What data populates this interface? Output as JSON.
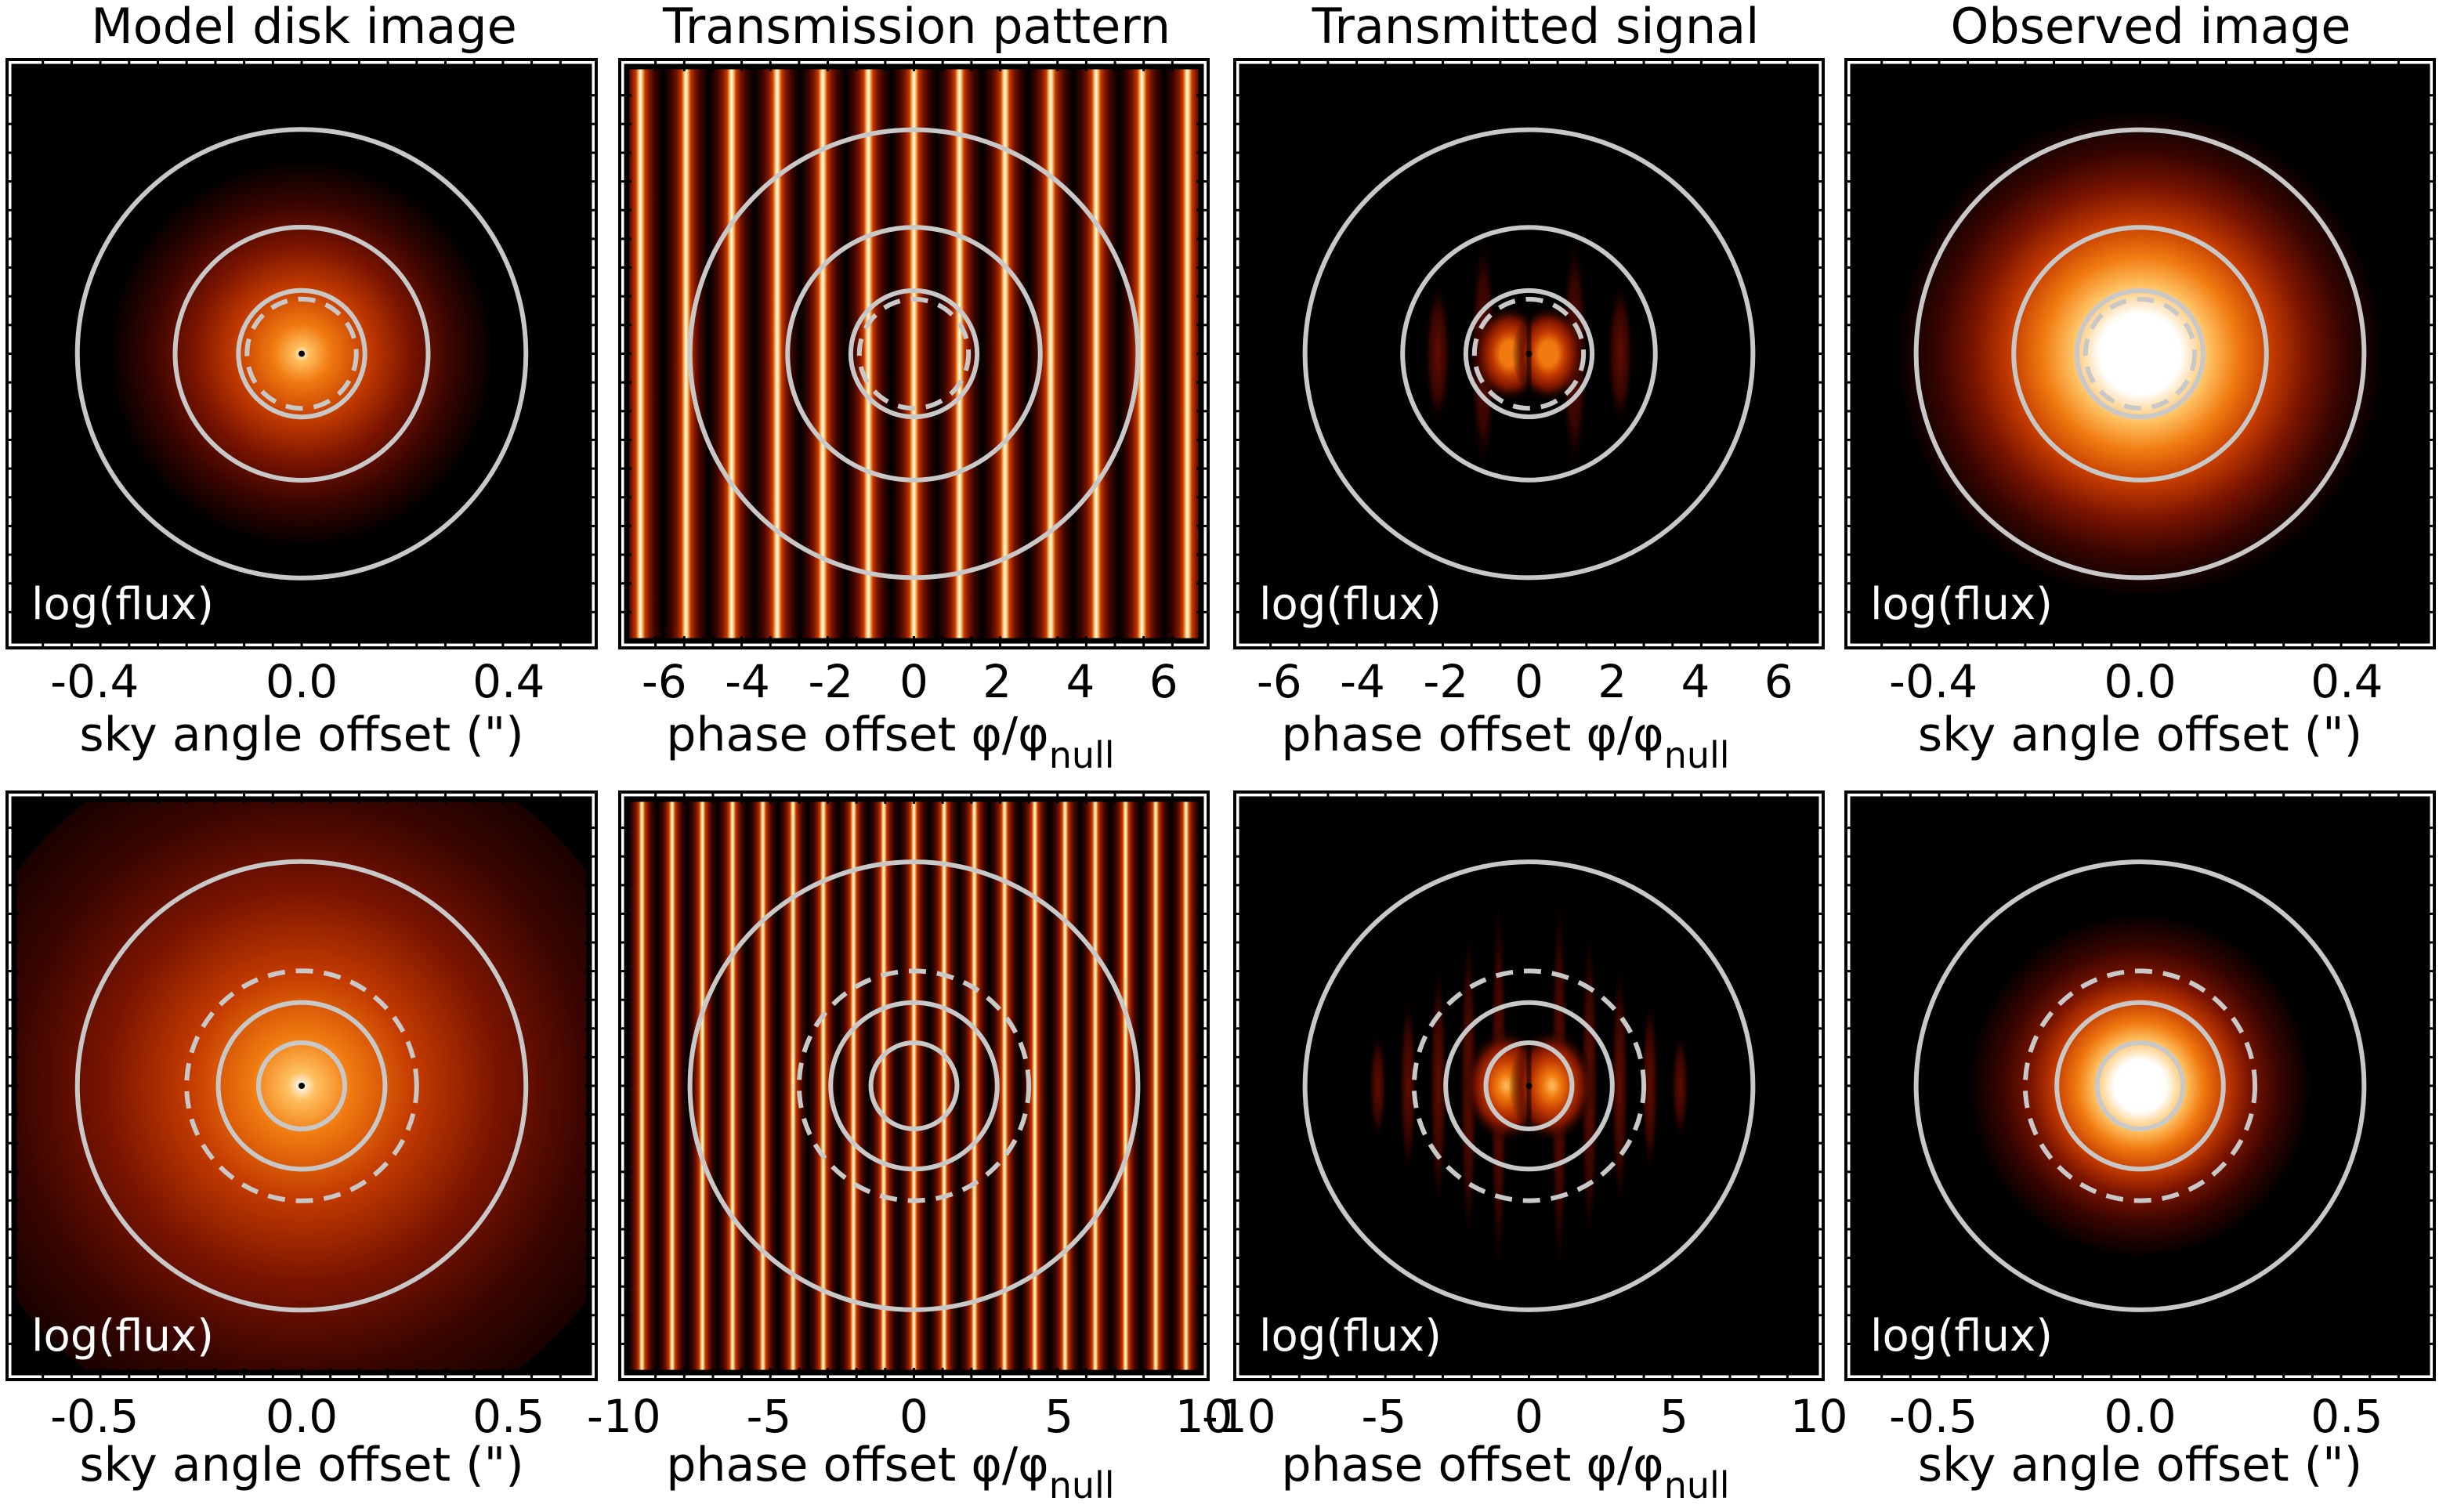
{
  "titles": [
    "Model disk image",
    "Transmission pattern",
    "Transmitted signal",
    "Observed image"
  ],
  "flux_label": "log(flux)",
  "axis_labels": {
    "sky": "sky angle offset (\")",
    "phase_main": "phase offset φ/φ",
    "phase_sub": "null"
  },
  "rows": [
    {
      "panels": [
        {
          "kind": "disk",
          "ticks": [
            "-0.4",
            "0.0",
            "0.4"
          ],
          "axis": "sky"
        },
        {
          "kind": "pattern",
          "ticks": [
            "-6",
            "-4",
            "-2",
            "0",
            "2",
            "4",
            "6"
          ],
          "axis": "phase"
        },
        {
          "kind": "signal",
          "ticks": [
            "-6",
            "-4",
            "-2",
            "0",
            "2",
            "4",
            "6"
          ],
          "axis": "phase"
        },
        {
          "kind": "observed",
          "ticks": [
            "-0.4",
            "0.0",
            "0.4"
          ],
          "axis": "sky"
        }
      ]
    },
    {
      "panels": [
        {
          "kind": "disk",
          "ticks": [
            "-0.5",
            "0.0",
            "0.5"
          ],
          "axis": "sky"
        },
        {
          "kind": "pattern",
          "ticks": [
            "-10",
            "-5",
            "0",
            "5",
            "10"
          ],
          "axis": "phase"
        },
        {
          "kind": "signal",
          "ticks": [
            "-10",
            "-5",
            "0",
            "5",
            "10"
          ],
          "axis": "phase"
        },
        {
          "kind": "observed",
          "ticks": [
            "-0.5",
            "0.0",
            "0.5"
          ],
          "axis": "sky"
        }
      ]
    }
  ],
  "colors": {
    "background": "#000000",
    "contour": "#c8c8c8",
    "colormap": [
      "#000000",
      "#3a0500",
      "#7a1400",
      "#c23a00",
      "#f07a10",
      "#ffc060",
      "#ffffff"
    ]
  }
}
